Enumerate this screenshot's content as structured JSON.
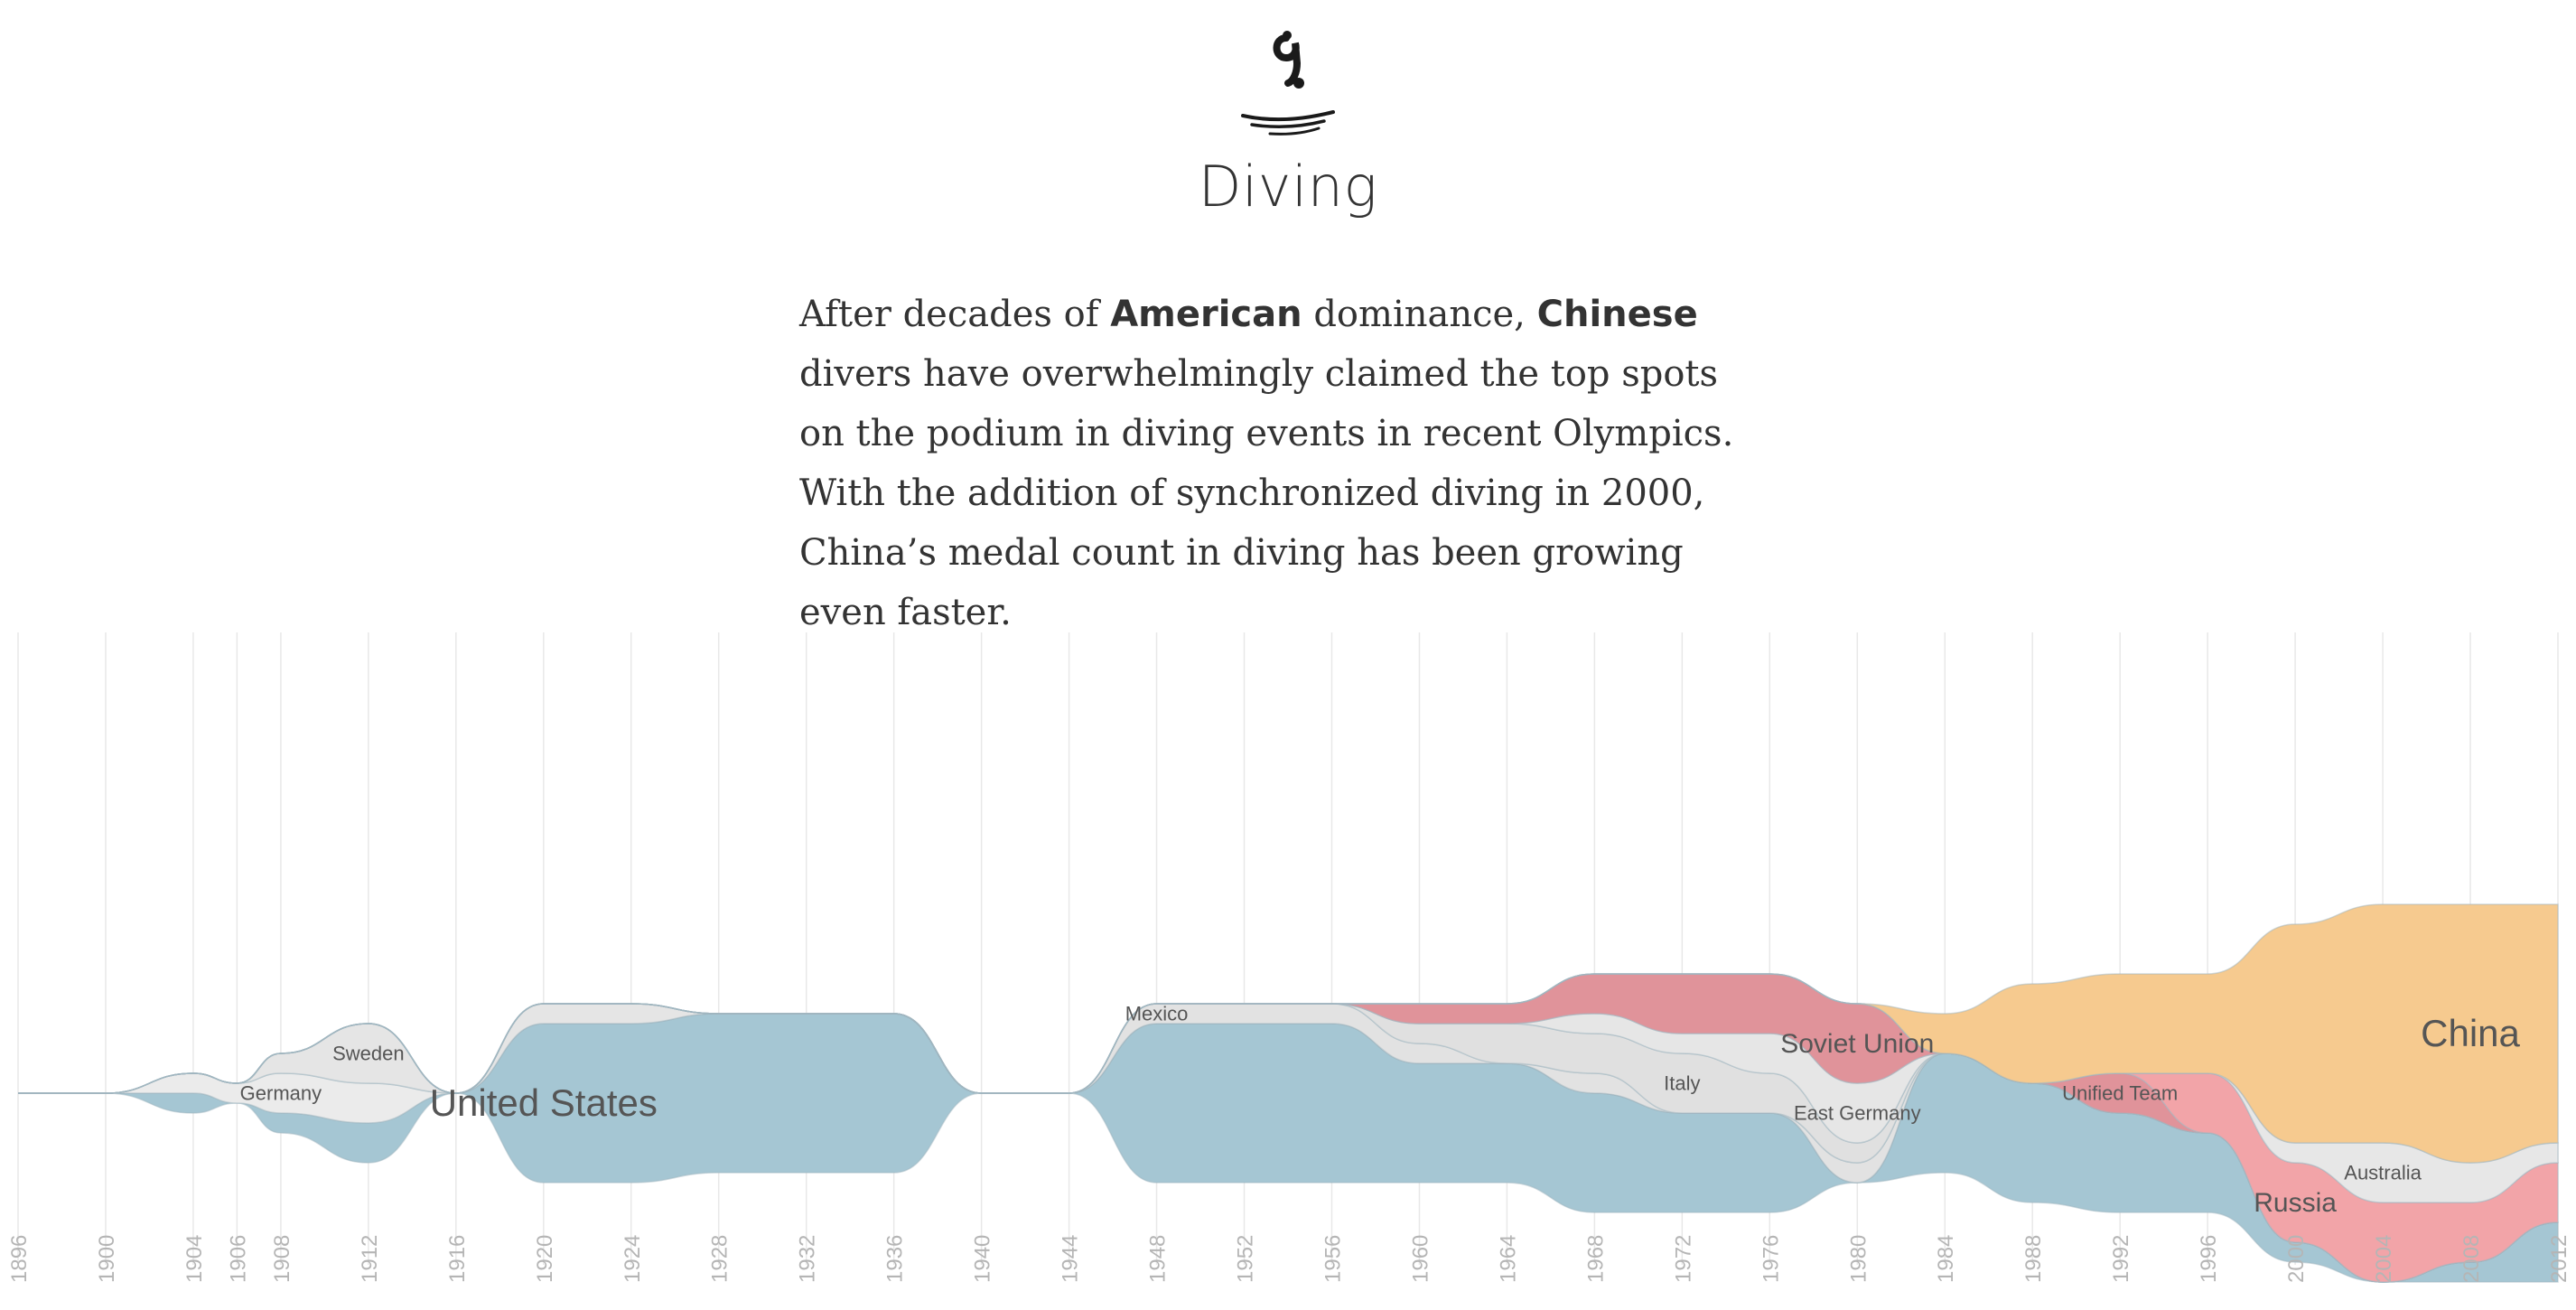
{
  "page": {
    "icon": "diving-figure-icon",
    "title": "Diving",
    "intro": {
      "p1": "After decades of ",
      "b1": "American",
      "p2": " dominance, ",
      "b2": "Chinese",
      "p3": " divers have overwhelmingly claimed the top spots on the podium in diving events in recent Olympics. With the addition of synchronized diving in 2000, China’s medal count in diving has been growing even faster."
    }
  },
  "chart_data": {
    "type": "area",
    "subtype": "streamgraph",
    "xlabel": "",
    "ylabel": "",
    "grid": true,
    "legend": "none",
    "x": [
      1896,
      1900,
      1904,
      1906,
      1908,
      1912,
      1916,
      1920,
      1924,
      1928,
      1932,
      1936,
      1940,
      1944,
      1948,
      1952,
      1956,
      1960,
      1964,
      1968,
      1972,
      1976,
      1980,
      1984,
      1988,
      1992,
      1996,
      2000,
      2004,
      2008,
      2012
    ],
    "tick_labels": [
      "1896",
      "1900",
      "1904",
      "1906",
      "1908",
      "1912",
      "1916",
      "1920",
      "1924",
      "1928",
      "1932",
      "1936",
      "1940",
      "1944",
      "1948",
      "1952",
      "1956",
      "1960",
      "1964",
      "1968",
      "1972",
      "1976",
      "1980",
      "1984",
      "1988",
      "1992",
      "1996",
      "2000",
      "2004",
      "2008",
      "2012"
    ],
    "series": [
      {
        "name": "United States",
        "values": [
          0,
          0,
          1,
          0,
          1,
          2,
          0,
          8,
          8,
          8,
          8,
          8,
          0,
          0,
          8,
          8,
          8,
          6,
          6,
          6,
          5,
          5,
          0,
          6,
          6,
          5,
          4,
          1,
          0,
          1,
          3
        ],
        "color": "#a5c6d3"
      },
      {
        "name": "Germany",
        "values": [
          0,
          0,
          1,
          1,
          2,
          2,
          0,
          0,
          0,
          0,
          0,
          0,
          0,
          0,
          0,
          0,
          0,
          0,
          0,
          0,
          0,
          0,
          0,
          0,
          0,
          0,
          0,
          0,
          0,
          0,
          0
        ],
        "color": "#ebebeb"
      },
      {
        "name": "Sweden",
        "values": [
          0,
          0,
          0,
          0,
          1,
          3,
          0,
          1,
          1,
          0,
          0,
          0,
          0,
          0,
          0,
          0,
          0,
          0,
          0,
          0,
          0,
          0,
          0,
          0,
          0,
          0,
          0,
          0,
          0,
          0,
          0
        ],
        "color": "#e5e5e5"
      },
      {
        "name": "Mexico",
        "values": [
          0,
          0,
          0,
          0,
          0,
          0,
          0,
          0,
          0,
          0,
          0,
          0,
          0,
          0,
          1,
          1,
          1,
          1,
          0,
          1,
          0,
          0,
          1,
          0,
          0,
          0,
          0,
          0,
          0,
          0,
          0
        ],
        "color": "#e2e2e2"
      },
      {
        "name": "Italy",
        "values": [
          0,
          0,
          0,
          0,
          0,
          0,
          0,
          0,
          0,
          0,
          0,
          0,
          0,
          0,
          0,
          0,
          0,
          1,
          2,
          2,
          3,
          2,
          1,
          0,
          0,
          0,
          0,
          0,
          0,
          0,
          0
        ],
        "color": "#e0e0e0"
      },
      {
        "name": "East Germany",
        "values": [
          0,
          0,
          0,
          0,
          0,
          0,
          0,
          0,
          0,
          0,
          0,
          0,
          0,
          0,
          0,
          0,
          0,
          0,
          0,
          1,
          1,
          2,
          3,
          0,
          0,
          0,
          0,
          0,
          0,
          0,
          0
        ],
        "color": "#e6e6e6"
      },
      {
        "name": "Soviet Union",
        "values": [
          0,
          0,
          0,
          0,
          0,
          0,
          0,
          0,
          0,
          0,
          0,
          0,
          0,
          0,
          0,
          0,
          0,
          1,
          1,
          2,
          3,
          3,
          4,
          0,
          0,
          0,
          0,
          0,
          0,
          0,
          0
        ],
        "color": "#e0939a"
      },
      {
        "name": "Unified Team",
        "values": [
          0,
          0,
          0,
          0,
          0,
          0,
          0,
          0,
          0,
          0,
          0,
          0,
          0,
          0,
          0,
          0,
          0,
          0,
          0,
          0,
          0,
          0,
          0,
          0,
          0,
          2,
          0,
          0,
          0,
          0,
          0
        ],
        "color": "#e0939a"
      },
      {
        "name": "Russia",
        "values": [
          0,
          0,
          0,
          0,
          0,
          0,
          0,
          0,
          0,
          0,
          0,
          0,
          0,
          0,
          0,
          0,
          0,
          0,
          0,
          0,
          0,
          0,
          0,
          0,
          0,
          0,
          3,
          4,
          4,
          3,
          3
        ],
        "color": "#f2a4a8"
      },
      {
        "name": "Australia",
        "values": [
          0,
          0,
          0,
          0,
          0,
          0,
          0,
          0,
          0,
          0,
          0,
          0,
          0,
          0,
          0,
          0,
          0,
          0,
          0,
          0,
          0,
          0,
          0,
          0,
          0,
          0,
          0,
          1,
          3,
          2,
          1
        ],
        "color": "#e7e7e7"
      },
      {
        "name": "China",
        "values": [
          0,
          0,
          0,
          0,
          0,
          0,
          0,
          0,
          0,
          0,
          0,
          0,
          0,
          0,
          0,
          0,
          0,
          0,
          0,
          0,
          0,
          0,
          0,
          2,
          5,
          5,
          5,
          11,
          12,
          13,
          12
        ],
        "color": "#f6ca8f"
      }
    ],
    "series_labels": [
      "United States",
      "Germany",
      "Sweden",
      "Mexico",
      "Italy",
      "East Germany",
      "Soviet Union",
      "Unified Team",
      "Russia",
      "Australia",
      "China"
    ]
  }
}
